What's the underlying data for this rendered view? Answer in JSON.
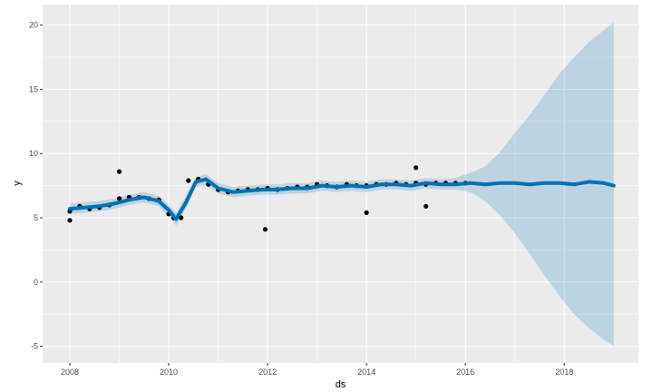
{
  "chart_data": {
    "type": "line",
    "title": "",
    "xlabel": "ds",
    "ylabel": "y",
    "xlim": [
      2007.45,
      2019.5
    ],
    "ylim": [
      -6.3,
      21.6
    ],
    "x_ticks": [
      2008,
      2010,
      2012,
      2014,
      2016,
      2018
    ],
    "x_tick_labels": [
      "2008",
      "2010",
      "2012",
      "2014",
      "2016",
      "2018"
    ],
    "y_ticks": [
      -5,
      0,
      5,
      10,
      15,
      20
    ],
    "y_tick_labels": [
      "-5",
      "0",
      "5",
      "10",
      "15",
      "20"
    ],
    "grid": true,
    "colors": {
      "panel": "#ebebeb",
      "grid_major": "#ffffff",
      "observed": "#000000",
      "forecast": "#0072b2",
      "interval": "#0072b2"
    },
    "series": [
      {
        "kind": "scatter",
        "x": [
          2008.0,
          2008.2,
          2008.4,
          2008.6,
          2008.8,
          2009.0,
          2009.2,
          2009.4,
          2009.6,
          2009.8,
          2010.0,
          2010.1,
          2010.25,
          2010.4,
          2010.6,
          2010.8,
          2011.0,
          2011.2,
          2011.4,
          2011.6,
          2011.8,
          2012.0,
          2012.2,
          2012.4,
          2012.6,
          2012.8,
          2013.0,
          2013.2,
          2013.4,
          2013.6,
          2013.8,
          2014.0,
          2014.2,
          2014.4,
          2014.6,
          2014.8,
          2015.0,
          2015.2,
          2015.4,
          2015.6,
          2015.8,
          2016.0
        ],
        "y": [
          5.5,
          5.9,
          5.7,
          5.8,
          6.0,
          6.5,
          6.6,
          6.6,
          6.5,
          6.4,
          5.3,
          5.0,
          5.0,
          7.9,
          8.0,
          7.6,
          7.2,
          7.0,
          7.1,
          7.2,
          7.2,
          7.3,
          7.2,
          7.3,
          7.4,
          7.4,
          7.6,
          7.5,
          7.4,
          7.6,
          7.5,
          7.5,
          7.6,
          7.6,
          7.7,
          7.6,
          7.7,
          7.6,
          7.7,
          7.7,
          7.7,
          7.7
        ]
      },
      {
        "kind": "scatter",
        "x": [
          2008.0,
          2009.0,
          2011.95,
          2014.0,
          2015.2,
          2015.0
        ],
        "y": [
          4.8,
          8.6,
          4.1,
          5.4,
          5.9,
          8.9
        ]
      },
      {
        "kind": "line",
        "x": [
          2008.0,
          2008.3,
          2008.6,
          2008.9,
          2009.2,
          2009.5,
          2009.8,
          2010.0,
          2010.15,
          2010.35,
          2010.55,
          2010.75,
          2011.0,
          2011.3,
          2011.6,
          2011.9,
          2012.2,
          2012.5,
          2012.8,
          2013.1,
          2013.4,
          2013.7,
          2014.0,
          2014.3,
          2014.6,
          2014.9,
          2015.2,
          2015.5,
          2015.8,
          2016.1,
          2016.4,
          2016.7,
          2017.0,
          2017.3,
          2017.6,
          2017.9,
          2018.2,
          2018.5,
          2018.8,
          2019.0
        ],
        "y": [
          5.7,
          5.8,
          5.9,
          6.1,
          6.4,
          6.6,
          6.3,
          5.6,
          4.9,
          6.2,
          7.8,
          8.0,
          7.3,
          7.0,
          7.1,
          7.2,
          7.2,
          7.3,
          7.3,
          7.5,
          7.4,
          7.5,
          7.4,
          7.6,
          7.6,
          7.5,
          7.7,
          7.6,
          7.6,
          7.7,
          7.6,
          7.7,
          7.7,
          7.6,
          7.7,
          7.7,
          7.6,
          7.8,
          7.7,
          7.5
        ],
        "lower": [
          5.3,
          5.4,
          5.5,
          5.7,
          6.0,
          6.2,
          5.9,
          5.1,
          4.4,
          5.7,
          7.4,
          7.5,
          6.9,
          6.6,
          6.7,
          6.8,
          6.8,
          6.9,
          6.9,
          7.1,
          7.0,
          7.1,
          7.0,
          7.2,
          7.2,
          7.1,
          7.3,
          7.2,
          7.2,
          7.0,
          6.3,
          5.2,
          3.8,
          2.2,
          0.5,
          -1.1,
          -2.5,
          -3.6,
          -4.5,
          -5.0
        ],
        "upper": [
          6.1,
          6.2,
          6.3,
          6.5,
          6.8,
          7.0,
          6.7,
          6.0,
          5.4,
          6.7,
          8.2,
          8.4,
          7.7,
          7.4,
          7.5,
          7.6,
          7.6,
          7.7,
          7.7,
          7.9,
          7.8,
          7.9,
          7.8,
          8.0,
          8.0,
          7.9,
          8.1,
          8.0,
          8.1,
          8.5,
          9.0,
          10.1,
          11.6,
          13.0,
          14.6,
          16.2,
          17.5,
          18.7,
          19.6,
          20.2
        ]
      }
    ]
  }
}
